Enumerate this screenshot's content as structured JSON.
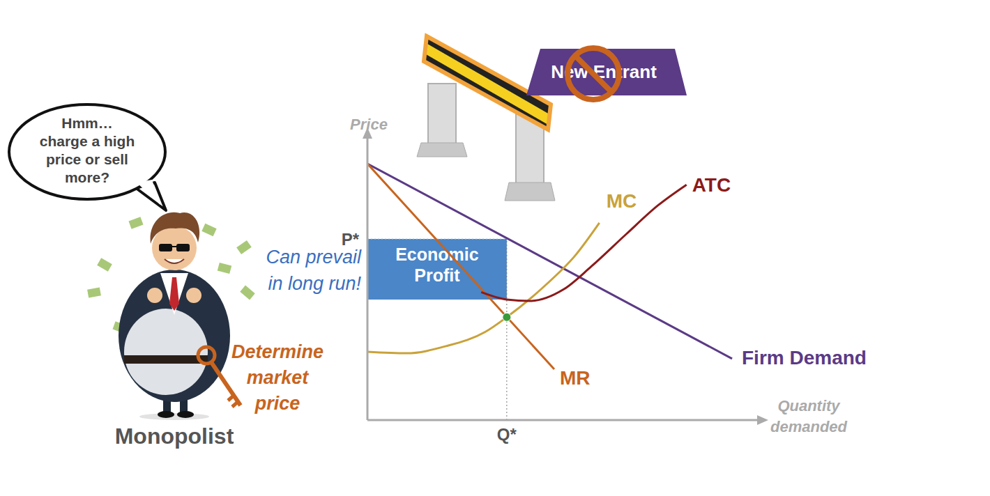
{
  "chart_data": {
    "type": "line",
    "x_label": "Quantity demanded",
    "y_label": "Price",
    "xlim": [
      0,
      10
    ],
    "ylim": [
      0,
      10
    ],
    "xticks": [
      {
        "value": 3.55,
        "label": "Q*"
      }
    ],
    "yticks": [
      {
        "value": 6.37,
        "label": "P*"
      }
    ],
    "grid": false,
    "series": [
      {
        "name": "Firm Demand",
        "color": "#5b3a86",
        "line_style": "linear",
        "x": [
          0,
          9.29
        ],
        "values": [
          9.02,
          2.16
        ]
      },
      {
        "name": "MR",
        "color": "#c8641e",
        "line_style": "linear",
        "x": [
          0,
          4.76
        ],
        "values": [
          9.02,
          1.79
        ]
      },
      {
        "name": "MC",
        "color": "#c9a23a",
        "line_style": "curved",
        "x": [
          0,
          1,
          2,
          3,
          3.55,
          4.5,
          5.3,
          5.91
        ],
        "values": [
          2.4,
          2.35,
          2.6,
          3.1,
          3.62,
          4.7,
          5.8,
          6.94
        ]
      },
      {
        "name": "ATC",
        "color": "#8b1a1a",
        "line_style": "curved",
        "x": [
          2.9,
          3.55,
          4.14,
          5,
          5.7,
          6.6,
          7.4,
          8.13
        ],
        "values": [
          4.5,
          4.24,
          4.19,
          4.6,
          5.4,
          6.55,
          7.55,
          8.28
        ]
      }
    ],
    "shaded_area": {
      "label": "Economic Profit",
      "x": [
        0,
        3.55
      ],
      "y": [
        4.24,
        6.37
      ],
      "color": "#4a86c8"
    },
    "points": [
      {
        "x": 3.55,
        "y": 3.62,
        "color": "#3a9a3a"
      }
    ],
    "annotations": {
      "speech": [
        "Hmm…",
        "charge a high",
        "price or sell",
        "more?"
      ],
      "note": [
        "Can prevail",
        "in long run!"
      ],
      "key": [
        "Determine",
        "market",
        "price"
      ],
      "character": "Monopolist",
      "sign": "New Entrant"
    }
  }
}
